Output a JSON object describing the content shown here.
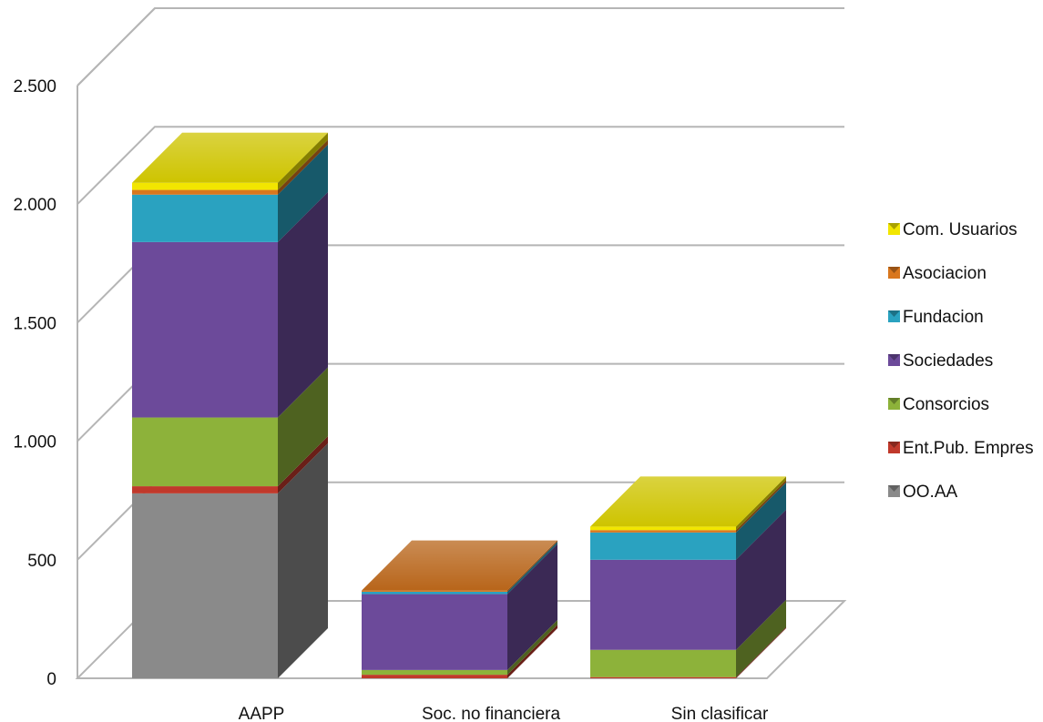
{
  "chart_data": {
    "type": "bar",
    "stacked": true,
    "three_d": true,
    "categories": [
      "AAPP",
      "Soc. no financiera",
      "Sin clasificar"
    ],
    "ylim": [
      0,
      2500
    ],
    "yticks": [
      0,
      500,
      1000,
      1500,
      2000,
      2500
    ],
    "ytick_labels": [
      "0",
      "500",
      "1.000",
      "1.500",
      "2.000",
      "2.500"
    ],
    "grid": true,
    "legend_position": "right",
    "series": [
      {
        "name": "OO.AA",
        "values": [
          780,
          0,
          0
        ],
        "color": "#8a8a8a"
      },
      {
        "name": "Ent.Pub. Empres",
        "values": [
          30,
          15,
          5
        ],
        "color": "#c0392b"
      },
      {
        "name": "Consorcios",
        "values": [
          290,
          20,
          115
        ],
        "color": "#8db23a"
      },
      {
        "name": "Sociedades",
        "values": [
          740,
          320,
          380
        ],
        "color": "#6c4a9a"
      },
      {
        "name": "Fundacion",
        "values": [
          200,
          10,
          115
        ],
        "color": "#2aa2c0"
      },
      {
        "name": "Asociacion",
        "values": [
          20,
          5,
          10
        ],
        "color": "#d9771e"
      },
      {
        "name": "Com. Usuarios",
        "values": [
          30,
          0,
          15
        ],
        "color": "#f2e600"
      }
    ]
  }
}
